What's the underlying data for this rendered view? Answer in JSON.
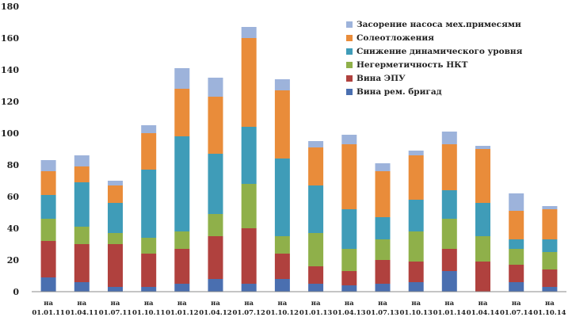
{
  "chart_data": {
    "type": "bar",
    "stacked": true,
    "categories": [
      [
        "на",
        "01.01.11"
      ],
      [
        "на",
        "01.04.11"
      ],
      [
        "на",
        "01.07.11"
      ],
      [
        "на",
        "01.10.11"
      ],
      [
        "на",
        "01.01.12"
      ],
      [
        "на",
        "01.04.12"
      ],
      [
        "на",
        "01.07.12"
      ],
      [
        "на",
        "01.10.12"
      ],
      [
        "на",
        "01.01.13"
      ],
      [
        "на",
        "01.04.13"
      ],
      [
        "на",
        "01.07.13"
      ],
      [
        "на",
        "01.10.13"
      ],
      [
        "на",
        "01.01.14"
      ],
      [
        "на",
        "01.04.14"
      ],
      [
        "на",
        "01.07.14"
      ],
      [
        "на",
        "01.10.14"
      ]
    ],
    "series": [
      {
        "name": "Вина рем. бригад",
        "color": "#4a6fb0",
        "values": [
          9,
          6,
          3,
          3,
          5,
          8,
          5,
          8,
          5,
          4,
          5,
          6,
          13,
          0,
          6,
          3
        ]
      },
      {
        "name": "Вина ЭПУ",
        "color": "#b0413e",
        "values": [
          23,
          24,
          27,
          21,
          22,
          27,
          35,
          16,
          11,
          9,
          15,
          13,
          14,
          19,
          11,
          11
        ]
      },
      {
        "name": "Негерметичность НКТ",
        "color": "#8fb04a",
        "values": [
          14,
          11,
          7,
          10,
          11,
          14,
          28,
          11,
          21,
          14,
          13,
          19,
          19,
          16,
          10,
          11
        ]
      },
      {
        "name": "Снижение динамического уровня",
        "color": "#3f9cb8",
        "values": [
          15,
          28,
          19,
          43,
          60,
          38,
          36,
          49,
          30,
          25,
          14,
          20,
          18,
          21,
          6,
          8
        ]
      },
      {
        "name": "Солеотложения",
        "color": "#e98c3a",
        "values": [
          15,
          10,
          11,
          23,
          30,
          36,
          56,
          43,
          24,
          41,
          29,
          28,
          29,
          34,
          18,
          19
        ]
      },
      {
        "name": "Засорение насоса мех.примесями",
        "color": "#9db3db",
        "values": [
          7,
          7,
          3,
          5,
          13,
          12,
          7,
          7,
          4,
          6,
          5,
          3,
          8,
          2,
          11,
          2
        ]
      }
    ],
    "ylim": [
      0,
      180
    ],
    "yticks": [
      "0",
      "20",
      "40",
      "60",
      "80",
      "100",
      "120",
      "140",
      "160",
      "180"
    ],
    "grid": false,
    "legend": "top-right"
  }
}
